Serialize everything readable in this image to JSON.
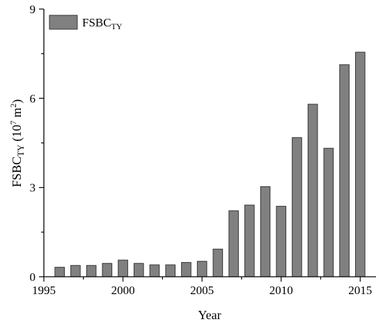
{
  "chart_data": {
    "type": "bar",
    "x": [
      1996,
      1997,
      1998,
      1999,
      2000,
      2001,
      2002,
      2003,
      2004,
      2005,
      2006,
      2007,
      2008,
      2009,
      2010,
      2011,
      2012,
      2013,
      2014,
      2015
    ],
    "series": [
      {
        "name": "FSBC",
        "name_subscript": "TY",
        "values": [
          0.32,
          0.38,
          0.38,
          0.45,
          0.56,
          0.45,
          0.4,
          0.4,
          0.48,
          0.52,
          0.93,
          2.22,
          2.41,
          3.03,
          2.37,
          4.68,
          5.8,
          4.32,
          7.13,
          7.55
        ],
        "color": "#808080"
      }
    ],
    "xlabel": "Year",
    "ylabel": {
      "main": "FSBC",
      "sub": "TY",
      "unit_open": " (10",
      "unit_exp": "7",
      "unit_mid": " m",
      "unit_exp2": "2",
      "unit_close": ")"
    },
    "xlim": [
      1995,
      2016
    ],
    "ylim": [
      0,
      9
    ],
    "xticks": [
      "1995",
      "2000",
      "2005",
      "2010",
      "2015"
    ],
    "yticks": [
      "0",
      "3",
      "6",
      "9"
    ],
    "grid": false,
    "legend_position": "top-left"
  }
}
